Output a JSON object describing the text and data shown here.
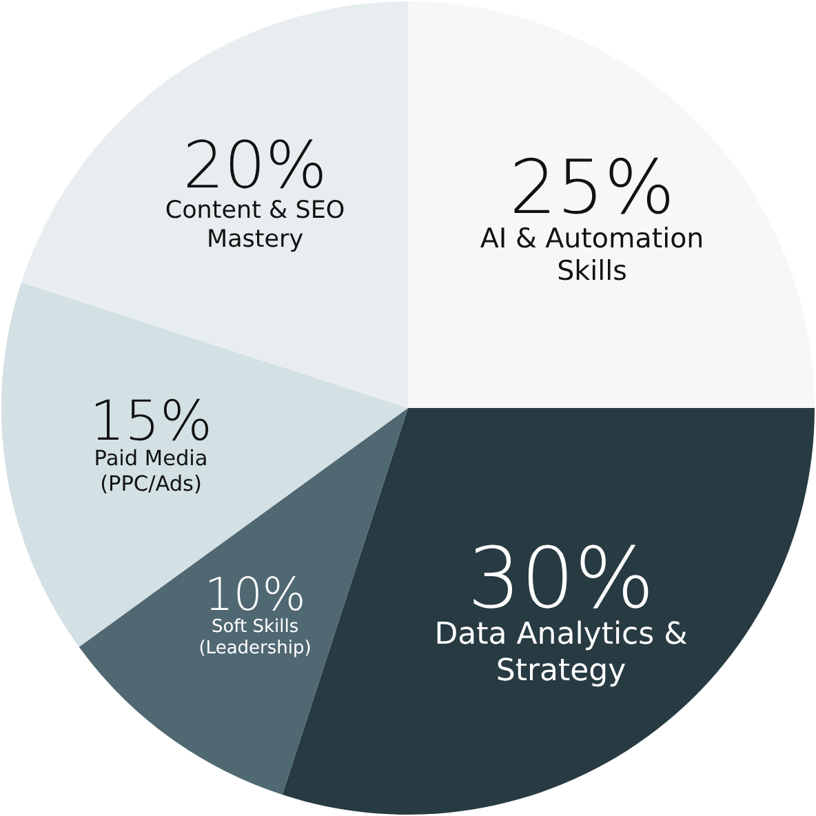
{
  "chart_data": {
    "type": "pie",
    "categories": [
      "AI & Automation\nSkills",
      "Data Analytics &\nStrategy",
      "Soft Skills\n(Leadership)",
      "Paid Media\n(PPC/Ads)",
      "Content & SEO\nMastery"
    ],
    "values": [
      25,
      30,
      10,
      15,
      20
    ],
    "colors": [
      "#f6f7f7",
      "#283a42",
      "#506872",
      "#d3e0e4",
      "#e8eef0"
    ],
    "value_labels": [
      "25%",
      "30%",
      "10%",
      "15%",
      "20%"
    ]
  }
}
